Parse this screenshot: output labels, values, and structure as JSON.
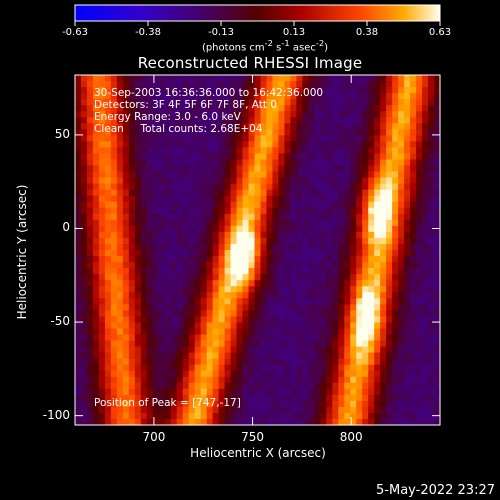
{
  "colorbar": {
    "ticks": [
      "-0.63",
      "-0.38",
      "-0.13",
      "0.13",
      "0.38",
      "0.63"
    ],
    "units_html": "(photons cm<sup>-2</sup> s<sup>-1</sup> asec<sup>-2</sup>)"
  },
  "info": {
    "line1": "30-Sep-2003 16:36:36.000 to 16:42:36.000",
    "line2": "Detectors: 3F 4F 5F 6F 7F 8F, Att 0",
    "line3": "Energy Range: 3.0 - 6.0 keV",
    "line4": "Clean     Total counts: 2.68E+04"
  },
  "peak_text": "Position of Peak = [747,-17]",
  "footer": "5-May-2022 23:27",
  "chart_data": {
    "type": "heatmap",
    "title": "Reconstructed RHESSI Image",
    "xlabel": "Heliocentric X (arcsec)",
    "ylabel": "Heliocentric Y (arcsec)",
    "xlim": [
      660,
      845
    ],
    "ylim": [
      -105,
      82
    ],
    "xticks": [
      700,
      750,
      800
    ],
    "yticks": [
      50,
      0,
      -50,
      -100
    ],
    "value_range": [
      -0.63,
      0.63
    ],
    "peak": {
      "x": 747,
      "y": -17
    },
    "features": [
      {
        "name": "left ridge",
        "x_at_top": 672,
        "x_at_bottom": 686,
        "level": 0.42
      },
      {
        "name": "center ridge",
        "x_at_top": 765,
        "x_at_bottom": 720,
        "level": 0.5
      },
      {
        "name": "right ridge",
        "x_at_top": 830,
        "x_at_bottom": 798,
        "level": 0.5
      }
    ],
    "hot_spots": [
      {
        "x": 747,
        "y": -17,
        "value": 0.63
      },
      {
        "x": 812,
        "y": 10,
        "value": 0.52
      },
      {
        "x": 808,
        "y": -48,
        "value": 0.44
      }
    ]
  }
}
